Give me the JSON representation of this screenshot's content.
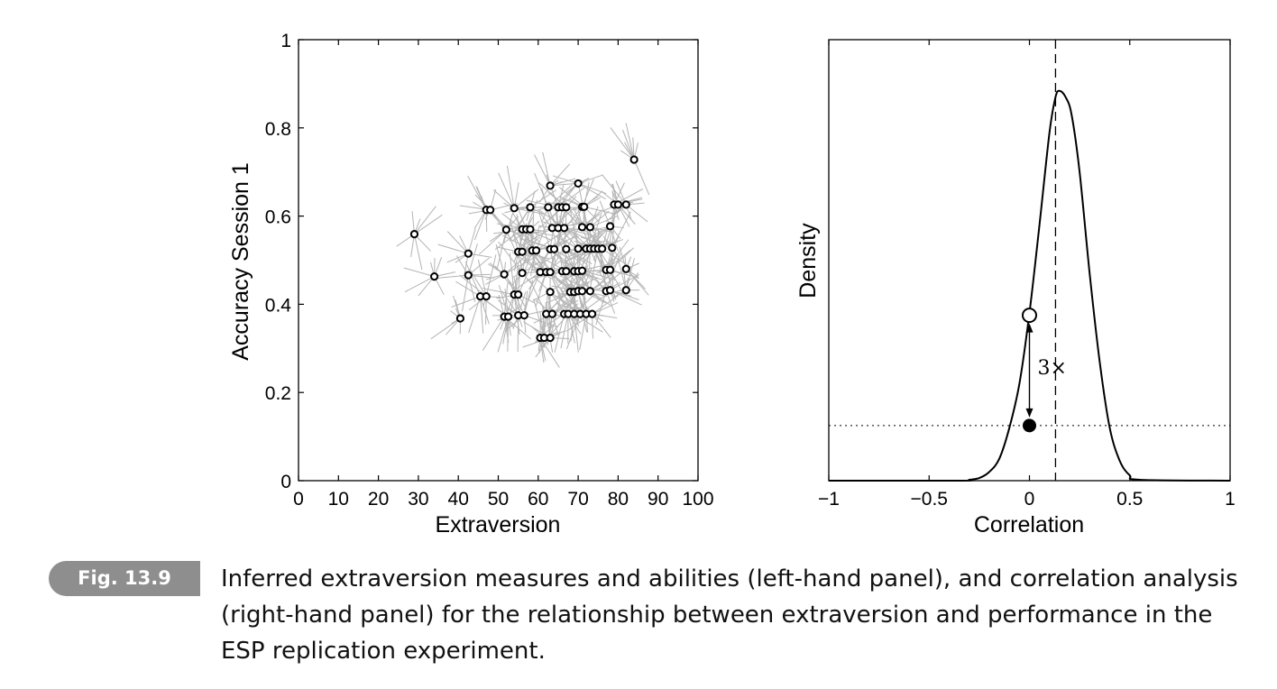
{
  "chart_data": [
    {
      "type": "scatter",
      "xlabel": "Extraversion",
      "ylabel": "Accuracy Session 1",
      "xlim": [
        0,
        100
      ],
      "ylim": [
        0,
        1
      ],
      "x_ticks": [
        0,
        10,
        20,
        30,
        40,
        50,
        60,
        70,
        80,
        90,
        100
      ],
      "y_ticks": [
        0,
        0.2,
        0.4,
        0.6,
        0.8,
        1
      ],
      "x_tick_labels": [
        "0",
        "10",
        "20",
        "30",
        "40",
        "50",
        "60",
        "70",
        "80",
        "90",
        "100"
      ],
      "y_tick_labels": [
        "0",
        "0.2",
        "0.4",
        "0.6",
        "0.8",
        "1"
      ],
      "colors": {
        "points": "#000000",
        "samples": "#b4b4b4"
      },
      "points": [
        {
          "x": 84,
          "y": 0.728
        },
        {
          "x": 29,
          "y": 0.559
        },
        {
          "x": 34,
          "y": 0.463
        },
        {
          "x": 40.5,
          "y": 0.368
        },
        {
          "x": 42.5,
          "y": 0.515
        },
        {
          "x": 42.5,
          "y": 0.466
        },
        {
          "x": 45.5,
          "y": 0.418
        },
        {
          "x": 47,
          "y": 0.418
        },
        {
          "x": 47,
          "y": 0.614
        },
        {
          "x": 48,
          "y": 0.614
        },
        {
          "x": 51.5,
          "y": 0.372
        },
        {
          "x": 52.5,
          "y": 0.372
        },
        {
          "x": 51.5,
          "y": 0.468
        },
        {
          "x": 52,
          "y": 0.569
        },
        {
          "x": 54,
          "y": 0.618
        },
        {
          "x": 54,
          "y": 0.422
        },
        {
          "x": 55,
          "y": 0.422
        },
        {
          "x": 55,
          "y": 0.375
        },
        {
          "x": 56.5,
          "y": 0.375
        },
        {
          "x": 55,
          "y": 0.519
        },
        {
          "x": 56,
          "y": 0.519
        },
        {
          "x": 56,
          "y": 0.471
        },
        {
          "x": 56,
          "y": 0.57
        },
        {
          "x": 57,
          "y": 0.57
        },
        {
          "x": 58,
          "y": 0.57
        },
        {
          "x": 58,
          "y": 0.62
        },
        {
          "x": 58.5,
          "y": 0.522
        },
        {
          "x": 59.5,
          "y": 0.522
        },
        {
          "x": 60.5,
          "y": 0.324
        },
        {
          "x": 61.5,
          "y": 0.324
        },
        {
          "x": 63,
          "y": 0.324
        },
        {
          "x": 60.5,
          "y": 0.473
        },
        {
          "x": 62,
          "y": 0.473
        },
        {
          "x": 63,
          "y": 0.473
        },
        {
          "x": 62,
          "y": 0.378
        },
        {
          "x": 63.5,
          "y": 0.378
        },
        {
          "x": 62.5,
          "y": 0.62
        },
        {
          "x": 63,
          "y": 0.669
        },
        {
          "x": 63.5,
          "y": 0.573
        },
        {
          "x": 63,
          "y": 0.428
        },
        {
          "x": 63,
          "y": 0.525
        },
        {
          "x": 64,
          "y": 0.525
        },
        {
          "x": 65,
          "y": 0.573
        },
        {
          "x": 65,
          "y": 0.62
        },
        {
          "x": 66,
          "y": 0.62
        },
        {
          "x": 67,
          "y": 0.62
        },
        {
          "x": 66.5,
          "y": 0.573
        },
        {
          "x": 66,
          "y": 0.475
        },
        {
          "x": 67,
          "y": 0.475
        },
        {
          "x": 67,
          "y": 0.525
        },
        {
          "x": 66.5,
          "y": 0.378
        },
        {
          "x": 67.5,
          "y": 0.378
        },
        {
          "x": 68,
          "y": 0.428
        },
        {
          "x": 69,
          "y": 0.428
        },
        {
          "x": 69,
          "y": 0.475
        },
        {
          "x": 69,
          "y": 0.378
        },
        {
          "x": 70,
          "y": 0.475
        },
        {
          "x": 70,
          "y": 0.526
        },
        {
          "x": 70,
          "y": 0.674
        },
        {
          "x": 70,
          "y": 0.43
        },
        {
          "x": 71,
          "y": 0.43
        },
        {
          "x": 70.5,
          "y": 0.378
        },
        {
          "x": 71,
          "y": 0.621
        },
        {
          "x": 71.5,
          "y": 0.621
        },
        {
          "x": 71,
          "y": 0.575
        },
        {
          "x": 71,
          "y": 0.476
        },
        {
          "x": 72,
          "y": 0.378
        },
        {
          "x": 72,
          "y": 0.526
        },
        {
          "x": 73,
          "y": 0.526
        },
        {
          "x": 74,
          "y": 0.526
        },
        {
          "x": 73,
          "y": 0.43
        },
        {
          "x": 73,
          "y": 0.575
        },
        {
          "x": 73.5,
          "y": 0.378
        },
        {
          "x": 75,
          "y": 0.526
        },
        {
          "x": 76,
          "y": 0.526
        },
        {
          "x": 77,
          "y": 0.43
        },
        {
          "x": 77,
          "y": 0.478
        },
        {
          "x": 78,
          "y": 0.478
        },
        {
          "x": 78,
          "y": 0.432
        },
        {
          "x": 78,
          "y": 0.577
        },
        {
          "x": 78.5,
          "y": 0.528
        },
        {
          "x": 79,
          "y": 0.626
        },
        {
          "x": 80,
          "y": 0.626
        },
        {
          "x": 82,
          "y": 0.626
        },
        {
          "x": 82,
          "y": 0.48
        },
        {
          "x": 82,
          "y": 0.432
        }
      ]
    },
    {
      "type": "line",
      "xlabel": "Correlation",
      "ylabel": "Density",
      "xlim": [
        -1,
        1
      ],
      "x_ticks": [
        -1,
        -0.5,
        0,
        0.5,
        1
      ],
      "x_tick_labels": [
        "−1",
        "−0.5",
        "0",
        "0.5",
        "1"
      ],
      "y_ticks": [],
      "ylim": [
        0,
        1
      ],
      "colors": {
        "curve": "#000000"
      },
      "curve": {
        "x": [
          -1,
          -0.35,
          -0.3,
          -0.25,
          -0.2,
          -0.15,
          -0.1,
          -0.05,
          0,
          0.05,
          0.1,
          0.13,
          0.15,
          0.18,
          0.21,
          0.25,
          0.3,
          0.35,
          0.4,
          0.45,
          0.5,
          0.55,
          1
        ],
        "y": [
          0,
          0.0,
          0.002,
          0.006,
          0.02,
          0.05,
          0.12,
          0.22,
          0.38,
          0.58,
          0.79,
          0.87,
          0.884,
          0.87,
          0.83,
          0.7,
          0.47,
          0.27,
          0.12,
          0.045,
          0.012,
          0.002,
          0
        ]
      },
      "reference_line_x": 0.13,
      "posterior_density_at_0": 0.375,
      "prior_density_at_0": 0.125,
      "annotation": "3×"
    }
  ],
  "caption": {
    "badge": "Fig. 13.9",
    "text": "Inferred extraversion measures and abilities (left-hand panel), and correlation analysis (right-hand panel) for the relationship between extraversion and performance in the ESP replication experiment."
  }
}
